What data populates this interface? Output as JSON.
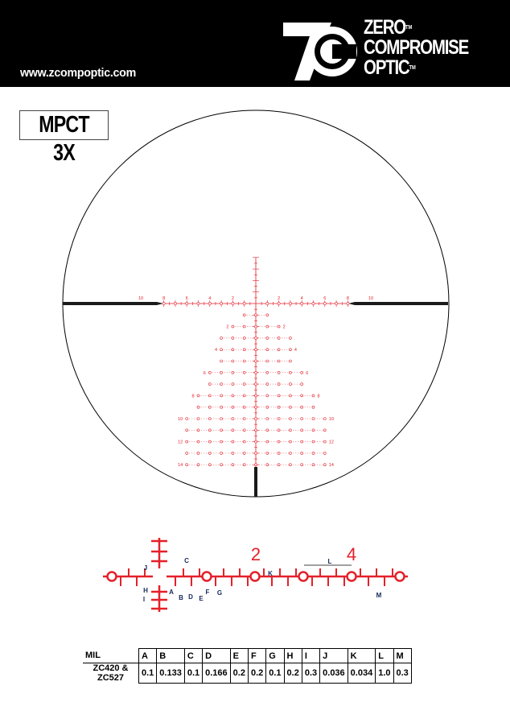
{
  "header": {
    "url": "www.zcompoptic.com",
    "brand_lines": [
      "ZERO",
      "COMPROMISE",
      "OPTIC"
    ],
    "tm": "TM",
    "logo_letters": "ZC"
  },
  "title": "MPCT 3X",
  "colors": {
    "reticle_red": "#e4202a",
    "post_black": "#1a1a1a",
    "header_bg": "#000000"
  },
  "reticle": {
    "horizontal_labels": [
      "10",
      "8",
      "6",
      "4",
      "2",
      "2",
      "4",
      "6",
      "8",
      "10"
    ],
    "horizontal_label_mils": [
      -10,
      -8,
      -6,
      -4,
      -2,
      2,
      4,
      6,
      8,
      10
    ],
    "grid_rows": [
      {
        "mil": 1,
        "half_width": 1
      },
      {
        "mil": 2,
        "half_width": 2,
        "label": "2"
      },
      {
        "mil": 3,
        "half_width": 3
      },
      {
        "mil": 4,
        "half_width": 3,
        "label": "4"
      },
      {
        "mil": 5,
        "half_width": 3
      },
      {
        "mil": 6,
        "half_width": 4,
        "label": "6"
      },
      {
        "mil": 7,
        "half_width": 4
      },
      {
        "mil": 8,
        "half_width": 5,
        "label": "8"
      },
      {
        "mil": 9,
        "half_width": 5
      },
      {
        "mil": 10,
        "half_width": 6,
        "label": "10"
      },
      {
        "mil": 11,
        "half_width": 6
      },
      {
        "mil": 12,
        "half_width": 6,
        "label": "12"
      },
      {
        "mil": 13,
        "half_width": 6
      },
      {
        "mil": 14,
        "half_width": 6,
        "label": "14"
      }
    ]
  },
  "detail": {
    "labels": {
      "n2": "2",
      "n4": "4",
      "A": "A",
      "B": "B",
      "C": "C",
      "D": "D",
      "E": "E",
      "F": "F",
      "G": "G",
      "H": "H",
      "I": "I",
      "J": "J",
      "K": "K",
      "L": "L",
      "M": "M"
    }
  },
  "table": {
    "header": [
      "MIL",
      "A",
      "B",
      "C",
      "D",
      "E",
      "F",
      "G",
      "H",
      "I",
      "J",
      "K",
      "L",
      "M"
    ],
    "row": [
      "ZC420 & ZC527",
      "0.1",
      "0.133",
      "0.1",
      "0.166",
      "0.2",
      "0.2",
      "0.1",
      "0.2",
      "0.3",
      "0.036",
      "0.034",
      "1.0",
      "0.3"
    ]
  }
}
